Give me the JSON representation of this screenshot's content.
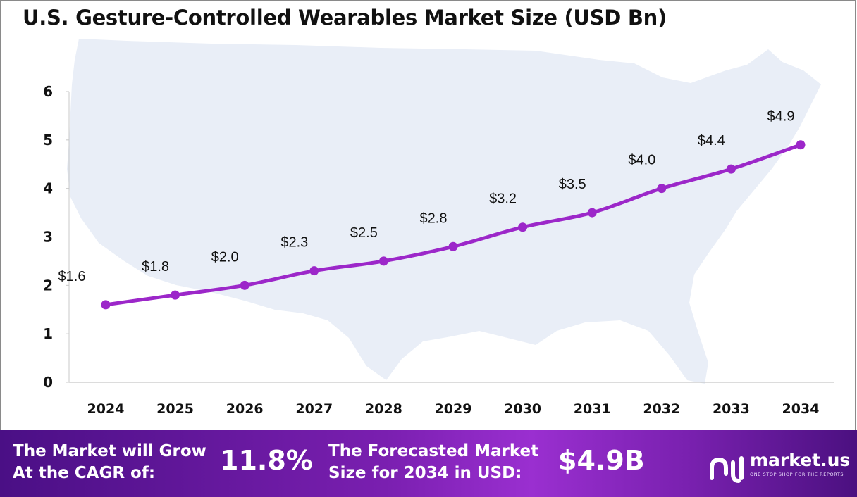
{
  "title": "U.S. Gesture-Controlled Wearables Market Size (USD Bn)",
  "colors": {
    "line": "#9c27c9",
    "map": "#e9eef7",
    "axis": "#c8c8c8"
  },
  "chart_data": {
    "type": "line",
    "title": "U.S. Gesture-Controlled Wearables Market Size (USD Bn)",
    "categories": [
      "2024",
      "2025",
      "2026",
      "2027",
      "2028",
      "2029",
      "2030",
      "2031",
      "2032",
      "2033",
      "2034"
    ],
    "values": [
      1.6,
      1.8,
      2.0,
      2.3,
      2.5,
      2.8,
      3.2,
      3.5,
      4.0,
      4.4,
      4.9
    ],
    "data_labels": [
      "$1.6",
      "$1.8",
      "$2.0",
      "$2.3",
      "$2.5",
      "$2.8",
      "$3.2",
      "$3.5",
      "$4.0",
      "$4.4",
      "$4.9"
    ],
    "yticks": [
      "0",
      "1",
      "2",
      "3",
      "4",
      "5",
      "6"
    ],
    "ylim": [
      0,
      6
    ],
    "xlabel": "",
    "ylabel": "",
    "grid": false,
    "legend": "none"
  },
  "footer": {
    "cagr_label": "The Market will Grow\nAt the CAGR of:",
    "cagr_value": "11.8%",
    "forecast_label": "The Forecasted Market\nSize for 2034 in USD:",
    "forecast_value": "$4.9B",
    "brand": "market.us",
    "tagline": "ONE STOP SHOP FOR THE REPORTS",
    "logo_icon": "market-us-logo-icon"
  }
}
